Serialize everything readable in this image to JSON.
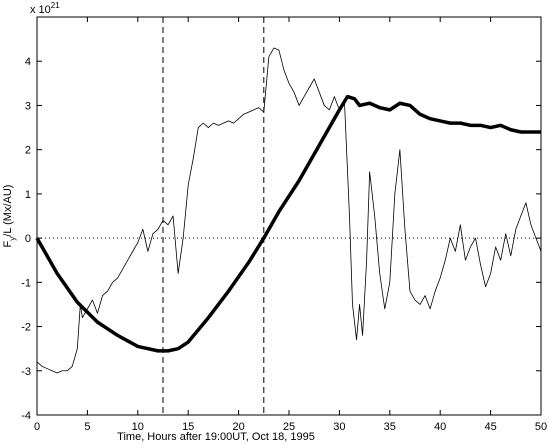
{
  "chart_data": {
    "type": "line",
    "xlabel": "Time, Hours after 19:00UT, Oct 18, 1995",
    "ylabel": {
      "main": "F",
      "sub": "y",
      "rest": "/L (Mx/AU)"
    },
    "multiplier": {
      "base": "x 10",
      "exponent": "21"
    },
    "xlim": [
      0,
      50
    ],
    "ylim": [
      -4,
      5
    ],
    "xticks": [
      0,
      5,
      10,
      15,
      20,
      25,
      30,
      35,
      40,
      45,
      50
    ],
    "yticks": [
      -4,
      -3,
      -2,
      -1,
      0,
      1,
      2,
      3,
      4
    ],
    "vlines": [
      12.5,
      22.5
    ],
    "hline": 0,
    "series": [
      {
        "color": "#000000",
        "linewidth": 0.8,
        "x": [
          0,
          0.5,
          1,
          1.5,
          2,
          2.5,
          3,
          3.5,
          4,
          4.3,
          4.5,
          5,
          5.5,
          6,
          6.5,
          7,
          7.5,
          8,
          8.5,
          9,
          9.5,
          10,
          10.5,
          11,
          11.5,
          12,
          12.5,
          13,
          13.5,
          14,
          14.5,
          15,
          15.5,
          16,
          16.5,
          17,
          17.5,
          18,
          18.5,
          19,
          19.5,
          20,
          20.5,
          21,
          21.5,
          22,
          22.5,
          23,
          23.5,
          24,
          24.5,
          25,
          25.5,
          26,
          26.5,
          27,
          27.5,
          28,
          28.5,
          29,
          29.5,
          30,
          30.5,
          31,
          31.3,
          31.7,
          32,
          32.3,
          32.7,
          33,
          33.5,
          34,
          34.5,
          35,
          35.5,
          36,
          36.5,
          37,
          37.5,
          38,
          38.5,
          39,
          39.5,
          40,
          40.5,
          41,
          41.5,
          42,
          42.5,
          43,
          43.5,
          44,
          44.5,
          45,
          45.5,
          46,
          46.5,
          47,
          47.5,
          48,
          48.5,
          49,
          49.5,
          50
        ],
        "values": [
          -2.8,
          -2.9,
          -2.95,
          -3.0,
          -3.05,
          -3.0,
          -3.0,
          -2.9,
          -2.5,
          -1.5,
          -1.8,
          -1.6,
          -1.4,
          -1.7,
          -1.3,
          -1.2,
          -1.0,
          -0.9,
          -0.7,
          -0.5,
          -0.3,
          -0.1,
          0.2,
          -0.3,
          0.1,
          0.2,
          0.4,
          0.3,
          0.5,
          -0.8,
          0.0,
          1.2,
          1.8,
          2.5,
          2.6,
          2.5,
          2.6,
          2.55,
          2.6,
          2.65,
          2.6,
          2.7,
          2.8,
          2.85,
          2.9,
          2.95,
          2.85,
          4.1,
          4.3,
          4.25,
          3.8,
          3.5,
          3.3,
          3.0,
          3.2,
          3.4,
          3.6,
          3.3,
          3.0,
          2.9,
          3.2,
          2.9,
          3.1,
          0.5,
          -1.5,
          -2.3,
          -1.5,
          -2.2,
          -0.5,
          1.5,
          0.5,
          -0.8,
          -1.6,
          -1.0,
          1.0,
          2.0,
          0.2,
          -1.2,
          -1.4,
          -1.5,
          -1.3,
          -1.6,
          -1.2,
          -0.9,
          -0.5,
          0.0,
          -0.3,
          0.3,
          -0.5,
          -0.2,
          0.0,
          -0.6,
          -1.1,
          -0.8,
          -0.2,
          -0.5,
          0.1,
          -0.4,
          0.2,
          0.5,
          0.8,
          0.3,
          0.0,
          -0.3
        ]
      },
      {
        "color": "#000000",
        "linewidth": 3.5,
        "x": [
          0,
          2,
          4,
          6,
          8,
          10,
          12,
          13,
          14,
          15,
          17,
          19,
          21,
          22.5,
          24,
          26,
          28,
          30,
          30.8,
          31.5,
          32,
          33,
          34,
          35,
          36,
          37,
          38,
          39,
          40,
          41,
          42,
          43,
          44,
          45,
          46,
          47,
          48,
          49,
          50
        ],
        "values": [
          0,
          -0.8,
          -1.45,
          -1.9,
          -2.2,
          -2.45,
          -2.55,
          -2.55,
          -2.5,
          -2.35,
          -1.8,
          -1.2,
          -0.55,
          0,
          0.6,
          1.3,
          2.1,
          2.9,
          3.2,
          3.15,
          3.0,
          3.05,
          2.95,
          2.9,
          3.05,
          3.0,
          2.8,
          2.7,
          2.65,
          2.6,
          2.6,
          2.55,
          2.55,
          2.5,
          2.55,
          2.45,
          2.4,
          2.4,
          2.4
        ]
      }
    ]
  }
}
